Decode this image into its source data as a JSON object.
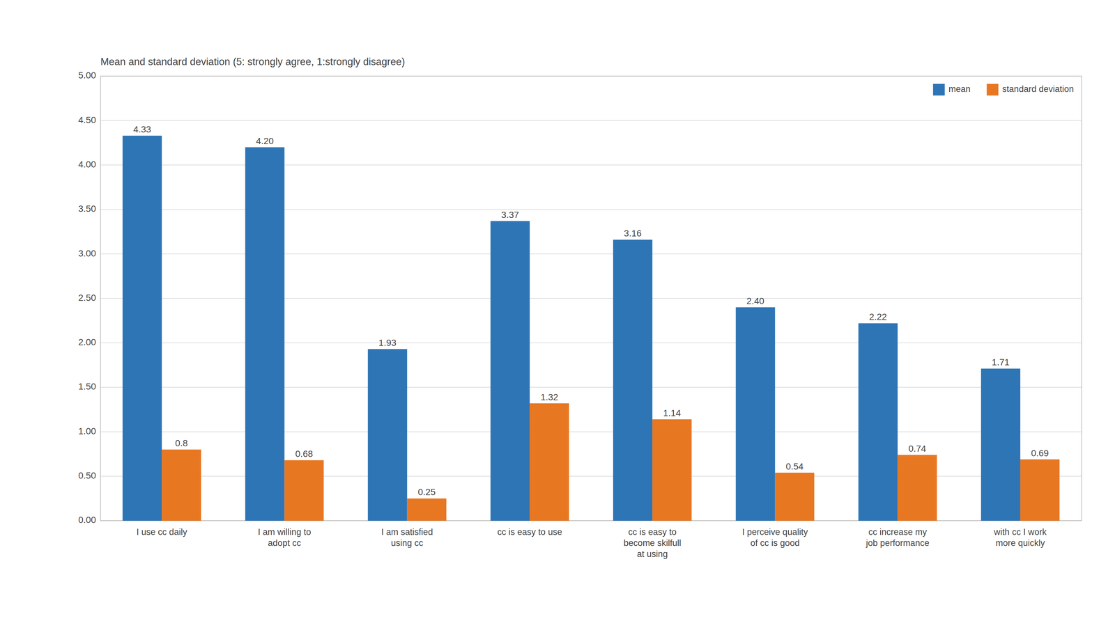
{
  "chart_data": {
    "type": "bar",
    "title": "Mean and standard deviation (5: strongly agree, 1:strongly disagree)",
    "categories": [
      "I use cc daily",
      "I am willing to\nadopt cc",
      "I am satisfied\nusing cc",
      "cc is easy to use",
      "cc is easy to\nbecome skilfull\nat using",
      "I perceive quality\nof cc is good",
      "cc increase my\njob performance",
      "with cc I work\nmore quickly"
    ],
    "series": [
      {
        "name": "mean",
        "color": "#2E75B6",
        "values": [
          4.33,
          4.2,
          1.93,
          3.37,
          3.16,
          2.4,
          2.22,
          1.71
        ],
        "value_labels": [
          "4.33",
          "4.20",
          "1.93",
          "3.37",
          "3.16",
          "2.40",
          "2.22",
          "1.71"
        ]
      },
      {
        "name": "standard deviation",
        "color": "#E87722",
        "values": [
          0.8,
          0.68,
          0.25,
          1.32,
          1.14,
          0.54,
          0.74,
          0.69
        ]
      }
    ],
    "ylim": [
      0.0,
      5.0
    ],
    "yticks": [
      {
        "value": 0.0,
        "label": "0.00"
      },
      {
        "value": 0.5,
        "label": "0.50"
      },
      {
        "value": 1.0,
        "label": "1.00"
      },
      {
        "value": 1.5,
        "label": "1.50"
      },
      {
        "value": 2.0,
        "label": "2.00"
      },
      {
        "value": 2.5,
        "label": "2.50"
      },
      {
        "value": 3.0,
        "label": "3.00"
      },
      {
        "value": 3.5,
        "label": "3.50"
      },
      {
        "value": 4.0,
        "label": "4.00"
      },
      {
        "value": 4.5,
        "label": "4.50"
      },
      {
        "value": 5.0,
        "label": "5.00"
      }
    ],
    "grid": true,
    "legend": "upper right",
    "data_labels": true
  }
}
